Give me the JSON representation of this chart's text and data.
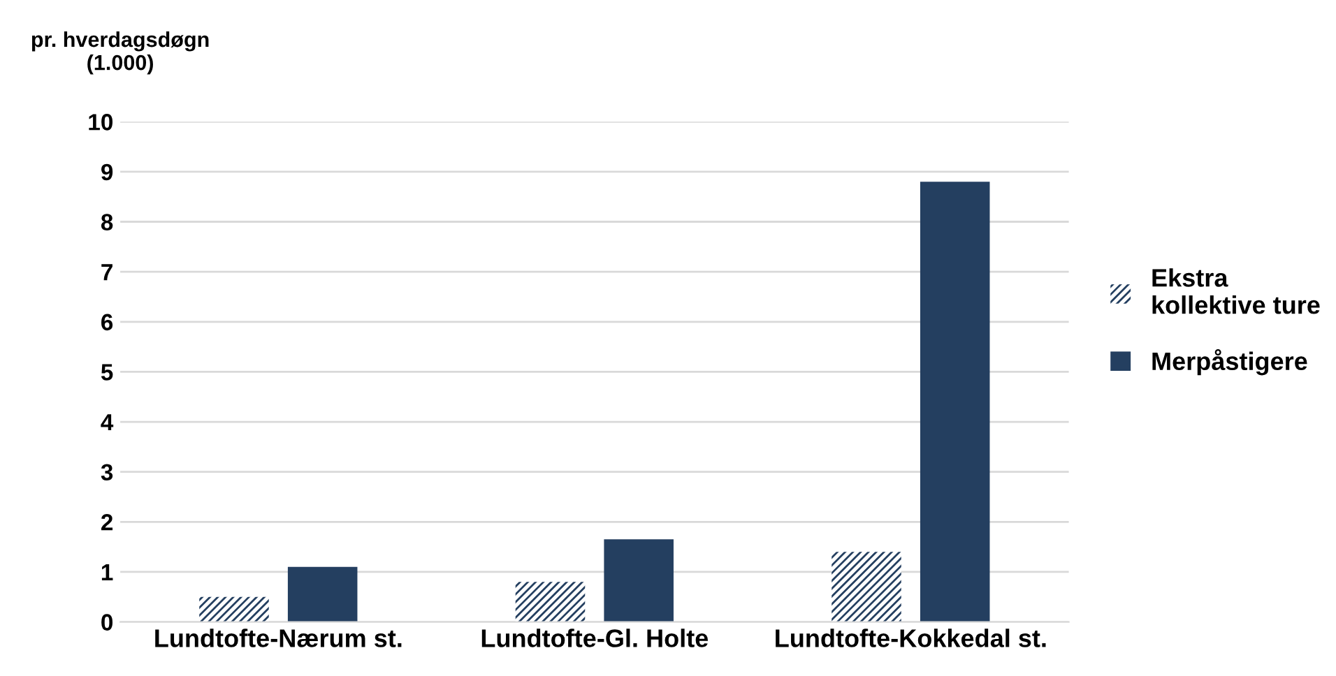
{
  "chart_data": {
    "type": "bar",
    "ylabel": "pr. hverdagsdøgn\n(1.000)",
    "categories": [
      "Lundtofte-Nærum st.",
      "Lundtofte-Gl. Holte",
      "Lundtofte-Kokkedal st."
    ],
    "series": [
      {
        "name": "Ekstra\nkollektive ture",
        "color": "#243f60",
        "values": [
          0.5,
          0.8,
          1.4
        ]
      },
      {
        "name": "Merpåstigere",
        "color": "#243f60",
        "values": [
          1.1,
          1.65,
          8.8
        ]
      }
    ],
    "ylim": [
      0,
      10
    ],
    "yticks": [
      0,
      1,
      2,
      3,
      4,
      5,
      6,
      7,
      8,
      9,
      10
    ],
    "grid": "y",
    "legend": "right"
  }
}
